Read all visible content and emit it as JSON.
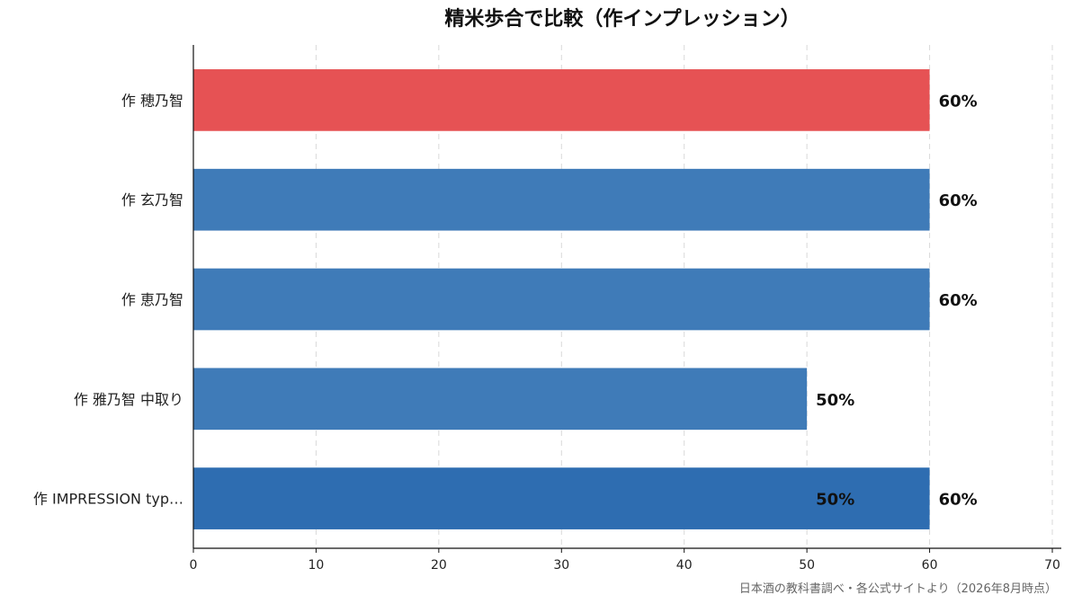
{
  "chart_data": {
    "type": "bar",
    "orientation": "horizontal",
    "title": "精米歩合で比較（作インプレッション）",
    "categories": [
      "作 穂乃智",
      "作 玄乃智",
      "作 恵乃智",
      "作 雅乃智 中取り",
      "作 IMPRESSION typ…"
    ],
    "values": [
      60,
      60,
      60,
      50,
      60
    ],
    "value_labels": [
      "60%",
      "60%",
      "60%",
      "50%",
      "60%"
    ],
    "extra_labels": [
      {
        "category": "作 IMPRESSION typ…",
        "value": 50,
        "label": "50%"
      }
    ],
    "bar_colors": [
      "#e65254",
      "#3f7bb8",
      "#3f7bb8",
      "#3f7bb8",
      "#2e6db1"
    ],
    "xlim": [
      0,
      70
    ],
    "xticks": [
      0,
      10,
      20,
      30,
      40,
      50,
      60,
      70
    ],
    "xlabel": "",
    "ylabel": "",
    "grid": "vertical dashed",
    "legend": "none"
  },
  "source_note": "日本酒の教科書調べ・各公式サイトより（2026年8月時点）"
}
